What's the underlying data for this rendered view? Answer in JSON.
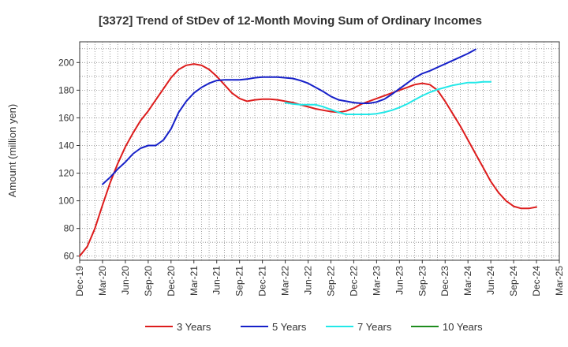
{
  "chart_data": {
    "type": "line",
    "title": "[3372]  Trend of StDev of 12-Month Moving Sum of Ordinary Incomes",
    "xlabel": "",
    "ylabel": "Amount (million yen)",
    "ylim": [
      57,
      215
    ],
    "yticks": [
      60,
      80,
      100,
      120,
      140,
      160,
      180,
      200
    ],
    "xticks": [
      "Dec-19",
      "Mar-20",
      "Jun-20",
      "Sep-20",
      "Dec-20",
      "Mar-21",
      "Jun-21",
      "Sep-21",
      "Dec-21",
      "Mar-22",
      "Jun-22",
      "Sep-22",
      "Dec-22",
      "Mar-23",
      "Jun-23",
      "Sep-23",
      "Dec-23",
      "Mar-24",
      "Jun-24",
      "Sep-24",
      "Dec-24",
      "Mar-25"
    ],
    "grid": true,
    "legend_position": "bottom",
    "series": [
      {
        "name": "3 Years",
        "color": "#dd1c1c",
        "start_index": 0,
        "values": [
          60,
          67,
          80,
          97,
          113,
          127,
          139,
          149,
          158,
          165,
          173,
          181,
          189,
          195,
          198,
          199,
          198,
          195,
          190,
          184,
          178,
          174,
          172,
          173,
          173.5,
          173.5,
          173,
          172,
          171,
          169.5,
          168,
          166.5,
          165.5,
          164.5,
          164,
          165,
          167,
          170,
          172,
          174,
          176,
          178,
          180,
          182,
          184,
          185,
          184,
          180,
          172,
          163,
          154,
          144,
          134,
          124,
          114,
          106,
          100,
          96,
          94.5,
          94.5,
          95.5
        ]
      },
      {
        "name": "5 Years",
        "color": "#1620c8",
        "start_index": 3,
        "values": [
          112,
          117,
          123,
          128,
          134,
          138,
          140,
          140,
          144,
          152,
          164,
          172,
          178,
          182,
          185,
          187,
          187.5,
          187.5,
          187.5,
          188,
          189,
          189.5,
          189.5,
          189.5,
          189,
          188.5,
          187,
          185,
          182,
          179,
          175.5,
          173,
          172,
          171,
          170.5,
          170.5,
          171.5,
          173.5,
          177,
          181,
          185,
          189,
          192,
          194,
          196.5,
          199,
          201.5,
          204,
          206.5,
          209.5
        ]
      },
      {
        "name": "7 Years",
        "color": "#22e8e8",
        "start_index": 27,
        "values": [
          171,
          170,
          169.5,
          169.5,
          169.5,
          168,
          166,
          164,
          162.5,
          162.5,
          162.5,
          162.5,
          163,
          164,
          165.5,
          167.5,
          170,
          173,
          176,
          178.5,
          180.5,
          182,
          183.5,
          184.5,
          185.5,
          185.5,
          186,
          186
        ]
      },
      {
        "name": "10 Years",
        "color": "#1e8c1e",
        "start_index": 0,
        "values": []
      }
    ]
  }
}
